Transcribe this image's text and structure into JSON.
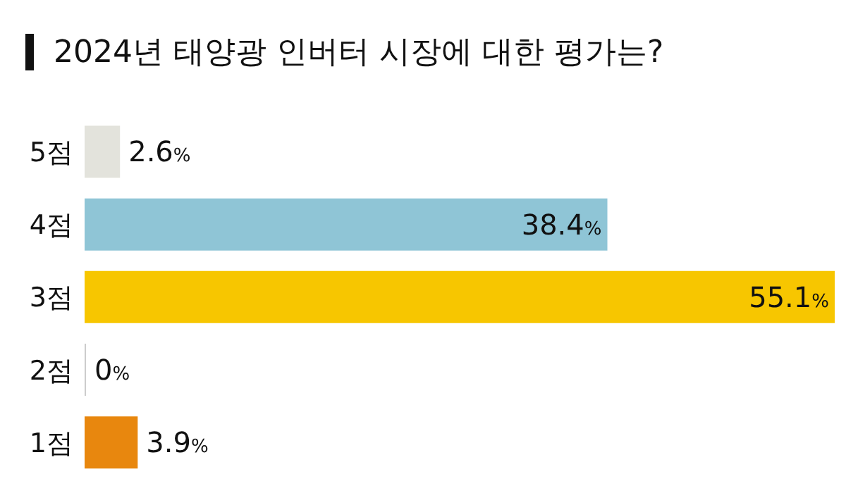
{
  "chart_data": {
    "type": "bar",
    "orientation": "horizontal",
    "title": "2024년 태양광 인버터 시장에 대한 평가는?",
    "categories": [
      "5점",
      "4점",
      "3점",
      "2점",
      "1점"
    ],
    "values": [
      2.6,
      38.4,
      55.1,
      0,
      3.9
    ],
    "colors": [
      "#e3e3dc",
      "#8fc5d6",
      "#f7c600",
      "#cccccc",
      "#e8870e"
    ],
    "value_labels": [
      "2.6%",
      "38.4%",
      "55.1%",
      "0%",
      "3.9%"
    ],
    "grid": false,
    "legend": false
  }
}
